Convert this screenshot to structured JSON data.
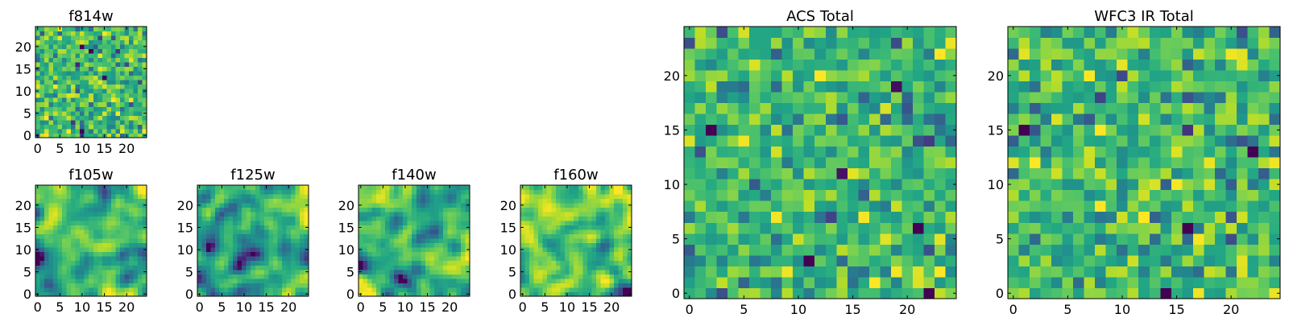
{
  "figure": {
    "colormap": "viridis",
    "background": "#ffffff"
  },
  "chart_data": [
    {
      "type": "heatmap",
      "title": "f814w",
      "grid_size": 25,
      "seed": 814,
      "smoothness": 0,
      "xticks": [
        "0",
        "5",
        "10",
        "15",
        "20"
      ],
      "yticks": [
        "0",
        "5",
        "10",
        "15",
        "20"
      ],
      "xtick_values": [
        0,
        5,
        10,
        15,
        20
      ],
      "ytick_values": [
        0,
        5,
        10,
        15,
        20
      ],
      "xlim": [
        -0.5,
        24.5
      ],
      "ylim": [
        -0.5,
        24.5
      ]
    },
    {
      "type": "heatmap",
      "title": "f105w",
      "grid_size": 25,
      "seed": 105,
      "smoothness": 2,
      "xticks": [
        "0",
        "5",
        "10",
        "15",
        "20"
      ],
      "yticks": [
        "0",
        "5",
        "10",
        "15",
        "20"
      ],
      "xtick_values": [
        0,
        5,
        10,
        15,
        20
      ],
      "ytick_values": [
        0,
        5,
        10,
        15,
        20
      ],
      "xlim": [
        -0.5,
        24.5
      ],
      "ylim": [
        -0.5,
        24.5
      ]
    },
    {
      "type": "heatmap",
      "title": "f125w",
      "grid_size": 25,
      "seed": 125,
      "smoothness": 2,
      "xticks": [
        "0",
        "5",
        "10",
        "15",
        "20"
      ],
      "yticks": [
        "0",
        "5",
        "10",
        "15",
        "20"
      ],
      "xtick_values": [
        0,
        5,
        10,
        15,
        20
      ],
      "ytick_values": [
        0,
        5,
        10,
        15,
        20
      ],
      "xlim": [
        -0.5,
        24.5
      ],
      "ylim": [
        -0.5,
        24.5
      ]
    },
    {
      "type": "heatmap",
      "title": "f140w",
      "grid_size": 25,
      "seed": 140,
      "smoothness": 2,
      "xticks": [
        "0",
        "5",
        "10",
        "15",
        "20"
      ],
      "yticks": [
        "0",
        "5",
        "10",
        "15",
        "20"
      ],
      "xtick_values": [
        0,
        5,
        10,
        15,
        20
      ],
      "ytick_values": [
        0,
        5,
        10,
        15,
        20
      ],
      "xlim": [
        -0.5,
        24.5
      ],
      "ylim": [
        -0.5,
        24.5
      ]
    },
    {
      "type": "heatmap",
      "title": "f160w",
      "grid_size": 25,
      "seed": 160,
      "smoothness": 2,
      "xticks": [
        "0",
        "5",
        "10",
        "15",
        "20"
      ],
      "yticks": [
        "0",
        "5",
        "10",
        "15",
        "20"
      ],
      "xtick_values": [
        0,
        5,
        10,
        15,
        20
      ],
      "ytick_values": [
        0,
        5,
        10,
        15,
        20
      ],
      "xlim": [
        -0.5,
        24.5
      ],
      "ylim": [
        -0.5,
        24.5
      ]
    },
    {
      "type": "heatmap",
      "title": "ACS Total",
      "grid_size": 25,
      "seed": 999,
      "smoothness": 0,
      "xticks": [
        "0",
        "5",
        "10",
        "15",
        "20"
      ],
      "yticks": [
        "0",
        "5",
        "10",
        "15",
        "20"
      ],
      "xtick_values": [
        0,
        5,
        10,
        15,
        20
      ],
      "ytick_values": [
        0,
        5,
        10,
        15,
        20
      ],
      "xlim": [
        -0.5,
        24.5
      ],
      "ylim": [
        -0.5,
        24.5
      ]
    },
    {
      "type": "heatmap",
      "title": "WFC3 IR Total",
      "grid_size": 25,
      "seed": 777,
      "smoothness": 0,
      "xticks": [
        "0",
        "5",
        "10",
        "15",
        "20"
      ],
      "yticks": [
        "0",
        "5",
        "10",
        "15",
        "20"
      ],
      "xtick_values": [
        0,
        5,
        10,
        15,
        20
      ],
      "ytick_values": [
        0,
        5,
        10,
        15,
        20
      ],
      "xlim": [
        -0.5,
        24.5
      ],
      "ylim": [
        -0.5,
        24.5
      ]
    }
  ]
}
